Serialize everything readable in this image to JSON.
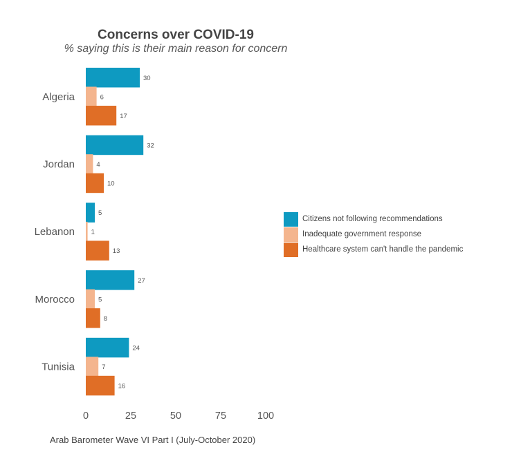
{
  "colors": {
    "series": [
      "#0e9ac1",
      "#f4b58e",
      "#e06e26"
    ],
    "axis_text": "#555555"
  },
  "chart_data": {
    "type": "bar",
    "orientation": "horizontal",
    "title": "Concerns over COVID-19",
    "subtitle": "% saying this is their main reason for concern",
    "caption": "Arab Barometer Wave VI Part I (July-October 2020)",
    "categories": [
      "Algeria",
      "Jordan",
      "Lebanon",
      "Morocco",
      "Tunisia"
    ],
    "series": [
      {
        "name": "Citizens not following recommendations",
        "values": [
          30,
          32,
          5,
          27,
          24
        ]
      },
      {
        "name": "Inadequate government response",
        "values": [
          6,
          4,
          1,
          5,
          7
        ]
      },
      {
        "name": "Healthcare system can't handle the pandemic",
        "values": [
          17,
          10,
          13,
          8,
          16
        ]
      }
    ],
    "xlim": [
      0,
      100
    ],
    "xticks": [
      0,
      25,
      50,
      75,
      100
    ],
    "xlabel": "",
    "ylabel": "",
    "grid": false,
    "legend_position": "right"
  }
}
